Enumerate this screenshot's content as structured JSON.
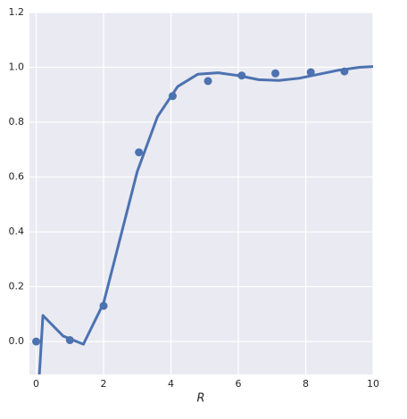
{
  "chart_data": {
    "type": "scatter",
    "x_label": "R",
    "xlim": [
      -0.2,
      10
    ],
    "ylim": [
      -0.12,
      1.2
    ],
    "xticks": [
      0,
      2,
      4,
      6,
      8,
      10
    ],
    "yticks": [
      {
        "value": 0,
        "label": "0.0"
      },
      0.2,
      0.4,
      0.6,
      0.8,
      {
        "value": 1,
        "label": "1.0"
      },
      1.2
    ],
    "grid": true,
    "background": "#eaeaf2",
    "series": [
      {
        "type": "scatter",
        "color": "#4c72b0",
        "x": [
          0,
          1,
          2,
          3.05,
          4.05,
          5.1,
          6.1,
          7.1,
          8.15,
          9.15
        ],
        "values": [
          0.0,
          0.005,
          0.13,
          0.69,
          0.895,
          0.95,
          0.97,
          0.978,
          0.982,
          0.985
        ]
      },
      {
        "type": "line",
        "color": "#4c72b0",
        "x": [
          0.08,
          0.2,
          0.8,
          1.0,
          1.4,
          2.0,
          3.0,
          3.6,
          4.2,
          4.8,
          5.4,
          6.0,
          6.6,
          7.2,
          7.8,
          8.4,
          9.0,
          9.6,
          10
        ],
        "values": [
          -0.15,
          0.095,
          0.02,
          0.01,
          -0.01,
          0.14,
          0.62,
          0.82,
          0.93,
          0.975,
          0.98,
          0.97,
          0.955,
          0.952,
          0.96,
          0.975,
          0.99,
          1.0,
          1.003
        ]
      }
    ]
  }
}
